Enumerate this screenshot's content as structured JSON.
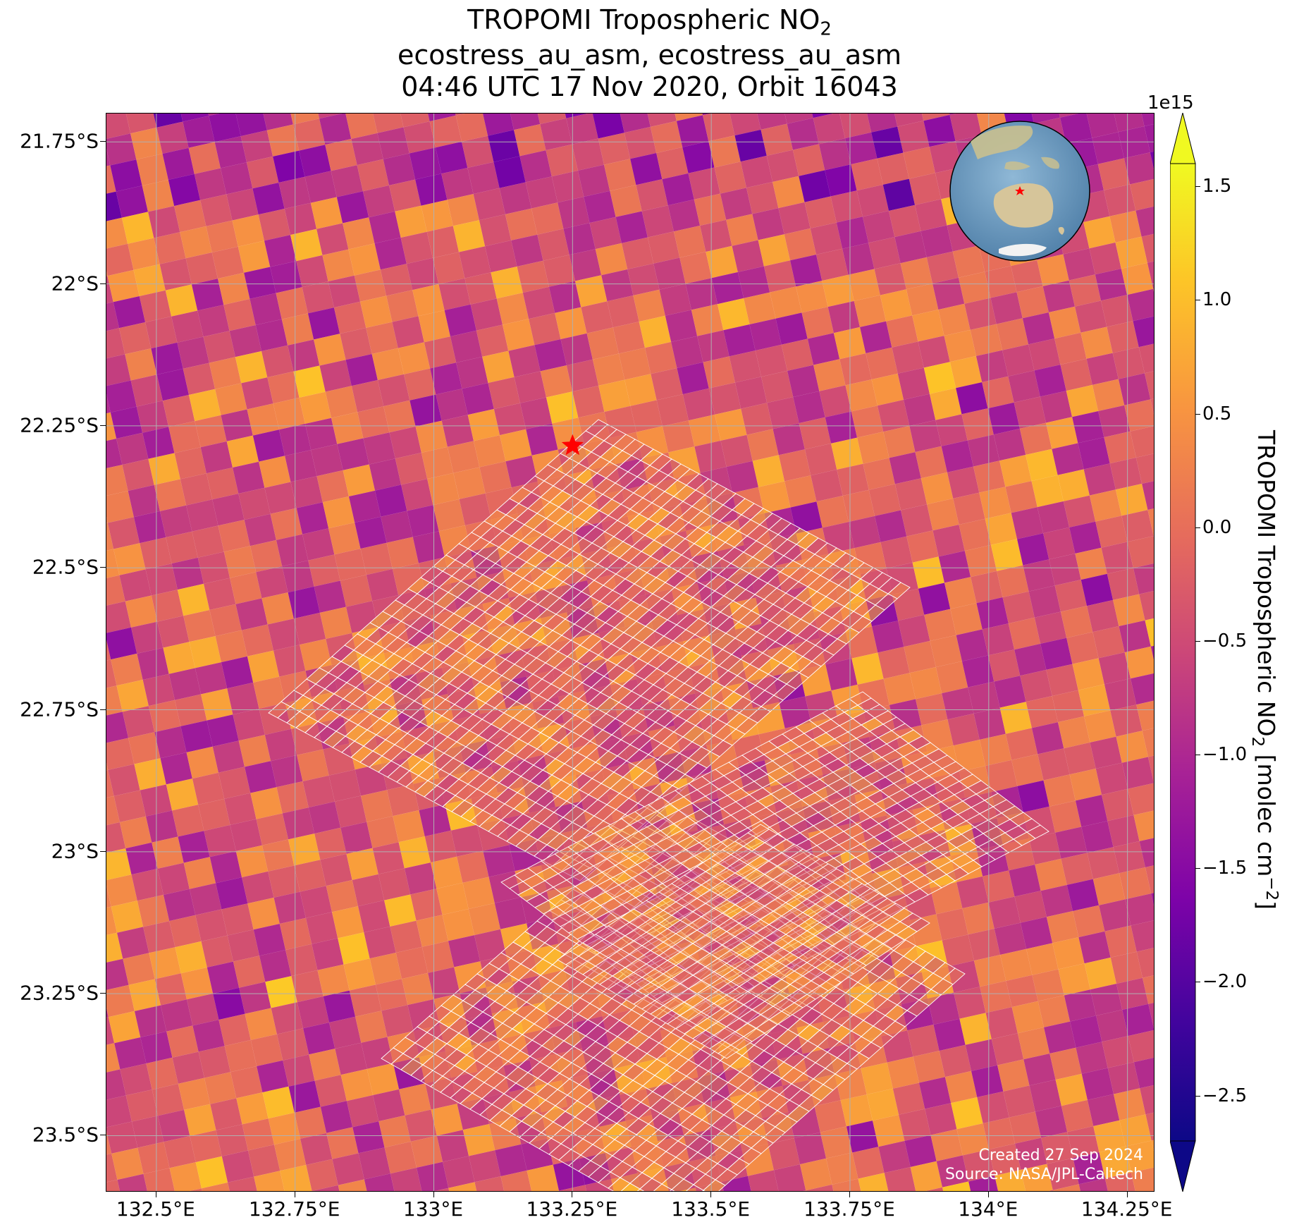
{
  "title": {
    "line1_main": "TROPOMI Tropospheric NO",
    "line1_sub": "2",
    "line2": "ecostress_au_asm, ecostress_au_asm",
    "line3": "04:46 UTC 17 Nov 2020, Orbit 16043"
  },
  "map": {
    "lat_labels": [
      "21.75°S",
      "22°S",
      "22.25°S",
      "22.5°S",
      "22.75°S",
      "23°S",
      "23.25°S",
      "23.5°S"
    ],
    "lon_labels": [
      "132.5°E",
      "132.75°E",
      "133°E",
      "133.25°E",
      "133.5°E",
      "133.75°E",
      "134°E",
      "134.25°E"
    ],
    "lat_values": [
      -21.75,
      -22.0,
      -22.25,
      -22.5,
      -22.75,
      -23.0,
      -23.25,
      -23.5
    ],
    "lon_values": [
      132.5,
      132.75,
      133.0,
      133.25,
      133.5,
      133.75,
      134.0,
      134.25
    ],
    "lat_range": [
      -23.6,
      -21.7
    ],
    "lon_range": [
      132.41,
      134.3
    ],
    "site_marker": {
      "lat": -22.285,
      "lon": 133.25,
      "color": "#ff0000",
      "icon": "star-icon"
    },
    "gridlines": true,
    "inset": "globe-icon"
  },
  "colorbar": {
    "exponent_label": "1e15",
    "title_main": "TROPOMI Tropospheric NO",
    "title_sub": "2",
    "title_units_pre": " [molec cm",
    "title_units_sup": "−2",
    "title_units_post": "]",
    "tick_labels": [
      "1.5",
      "1.0",
      "0.5",
      "0.0",
      "−0.5",
      "−1.0",
      "−1.5",
      "−2.0",
      "−2.5"
    ],
    "tick_values": [
      1.5,
      1.0,
      0.5,
      0.0,
      -0.5,
      -1.0,
      -1.5,
      -2.0,
      -2.5
    ],
    "range": [
      -2.7,
      1.6
    ],
    "extend": "both",
    "colormap": "plasma"
  },
  "credits": {
    "created": "Created 27 Sep 2024",
    "source": "Source: NASA/JPL-Caltech"
  }
}
